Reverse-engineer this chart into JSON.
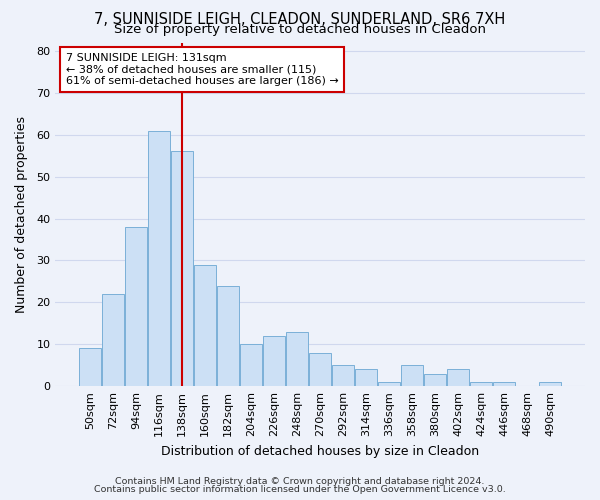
{
  "title_line1": "7, SUNNISIDE LEIGH, CLEADON, SUNDERLAND, SR6 7XH",
  "title_line2": "Size of property relative to detached houses in Cleadon",
  "xlabel": "Distribution of detached houses by size in Cleadon",
  "ylabel": "Number of detached properties",
  "footer_line1": "Contains HM Land Registry data © Crown copyright and database right 2024.",
  "footer_line2": "Contains public sector information licensed under the Open Government Licence v3.0.",
  "categories": [
    "50sqm",
    "72sqm",
    "94sqm",
    "116sqm",
    "138sqm",
    "160sqm",
    "182sqm",
    "204sqm",
    "226sqm",
    "248sqm",
    "270sqm",
    "292sqm",
    "314sqm",
    "336sqm",
    "358sqm",
    "380sqm",
    "402sqm",
    "424sqm",
    "446sqm",
    "468sqm",
    "490sqm"
  ],
  "values": [
    9,
    22,
    38,
    61,
    56,
    29,
    24,
    10,
    12,
    13,
    8,
    5,
    4,
    1,
    5,
    3,
    4,
    1,
    1,
    0,
    1
  ],
  "bar_color": "#cce0f5",
  "bar_edge_color": "#7ab0d8",
  "vline_x_index": 4,
  "vline_color": "#cc0000",
  "ylim": [
    0,
    82
  ],
  "yticks": [
    0,
    10,
    20,
    30,
    40,
    50,
    60,
    70,
    80
  ],
  "annotation_line1": "7 SUNNISIDE LEIGH: 131sqm",
  "annotation_line2": "← 38% of detached houses are smaller (115)",
  "annotation_line3": "61% of semi-detached houses are larger (186) →",
  "annotation_box_color": "#ffffff",
  "annotation_box_edge": "#cc0000",
  "background_color": "#eef2fa",
  "grid_color": "#d0d8ee",
  "title_fontsize": 10.5,
  "subtitle_fontsize": 9.5,
  "axis_label_fontsize": 9,
  "tick_fontsize": 8,
  "footer_fontsize": 6.8
}
